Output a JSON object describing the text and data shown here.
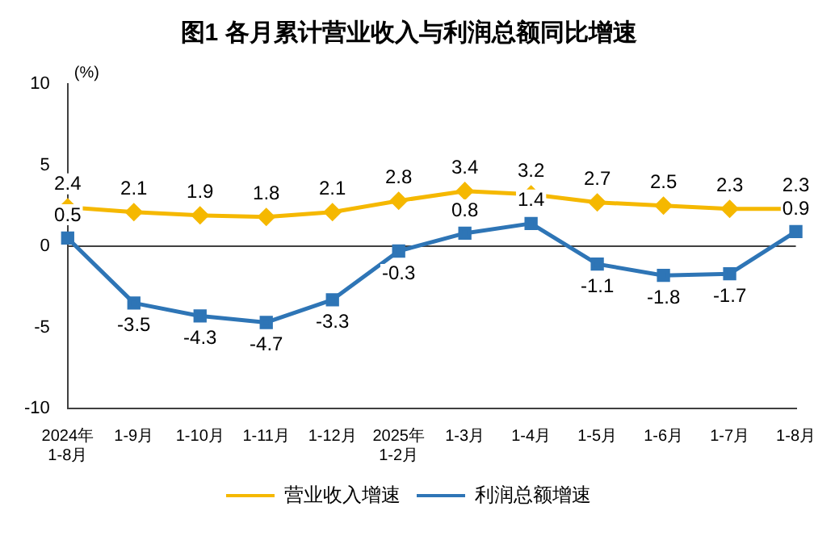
{
  "chart_data": {
    "type": "line",
    "title": "图1 各月累计营业收入与利润总额同比增速",
    "ylabel": "(%)",
    "categories": [
      "2024年\n1-8月",
      "1-9月",
      "1-10月",
      "1-11月",
      "1-12月",
      "2025年\n1-2月",
      "1-3月",
      "1-4月",
      "1-5月",
      "1-6月",
      "1-7月",
      "1-8月"
    ],
    "series": [
      {
        "name": "营业收入增速",
        "color": "#f5b800",
        "marker": "diamond",
        "values": [
          2.4,
          2.1,
          1.9,
          1.8,
          2.1,
          2.8,
          3.4,
          3.2,
          2.7,
          2.5,
          2.3,
          2.3
        ]
      },
      {
        "name": "利润总额增速",
        "color": "#2e75b6",
        "marker": "square",
        "values": [
          0.5,
          -3.5,
          -4.3,
          -4.7,
          -3.3,
          -0.3,
          0.8,
          1.4,
          -1.1,
          -1.8,
          -1.7,
          0.9
        ]
      }
    ],
    "ylim": [
      -10,
      10
    ],
    "yticks": [
      -10,
      -5,
      0,
      5,
      10
    ],
    "grid": false,
    "legend": "bottom",
    "data_labels": true,
    "ref_lines": [
      {
        "axis": "y",
        "value": 0,
        "color": "#404040"
      }
    ]
  }
}
